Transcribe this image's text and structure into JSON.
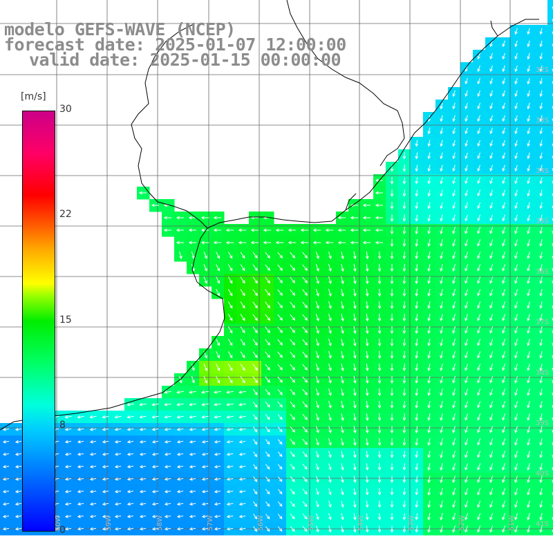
{
  "title": {
    "line1": "modelo GEFS-WAVE (NCEP)",
    "line2": "forecast date: 2025-01-07 12:00:00",
    "line3": "valid date: 2025-01-15 00:00:00"
  },
  "colorbar": {
    "unit": "[m/s]",
    "ticks": [
      "30",
      "22",
      "15",
      "8",
      "0"
    ],
    "range": [
      0,
      30
    ],
    "colors": [
      "#0000ff",
      "#0077ff",
      "#00ccff",
      "#00ffdd",
      "#00ff66",
      "#00ee00",
      "#99ff00",
      "#ffff00",
      "#ffaa00",
      "#ff6600",
      "#ff0000",
      "#cc0088"
    ]
  },
  "map": {
    "lat_labels": [
      "32S",
      "33S",
      "34S",
      "35S",
      "36S",
      "37S",
      "38S",
      "39S",
      "40S",
      "41S"
    ],
    "lon_labels": [
      "60W",
      "59W",
      "58W",
      "57W",
      "56W",
      "55W",
      "54W",
      "53W",
      "52W",
      "51W"
    ],
    "variable": "wind speed",
    "arrow_direction": "mostly southward, westward near the coast"
  }
}
